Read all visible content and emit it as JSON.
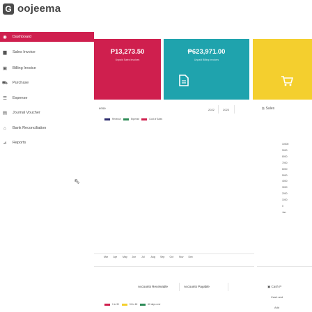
{
  "app": {
    "logo_letter": "G",
    "name": "oojeema"
  },
  "sidebar": {
    "items": [
      {
        "label": "Dashboard",
        "icon": "dashboard-icon"
      },
      {
        "label": "Sales Invoice",
        "icon": "bar-chart-icon"
      },
      {
        "label": "Billing Invoice",
        "icon": "billing-icon"
      },
      {
        "label": "Purchase",
        "icon": "cart-icon"
      },
      {
        "label": "Expense",
        "icon": "expense-icon"
      },
      {
        "label": "Journal Voucher",
        "icon": "journal-icon"
      },
      {
        "label": "Bank Reconciliation",
        "icon": "bank-icon"
      },
      {
        "label": "Reports",
        "icon": "reports-icon"
      }
    ]
  },
  "cards": [
    {
      "value": "P13,273.50",
      "sub": "Unpaid Sales Invoices",
      "color": "#cf1f4e"
    },
    {
      "value": "₱623,971.00",
      "sub": "Unpaid Billing Invoices",
      "color": "#1fa3ad"
    },
    {
      "value": "",
      "sub": "",
      "color": "#f4cf2e"
    }
  ],
  "income_expense": {
    "title_fragment": "ense",
    "years": [
      "2022",
      "2023"
    ],
    "legend": [
      "Revenue",
      "Expense",
      "Cost of Sales"
    ],
    "months": [
      "Mar",
      "Apr",
      "May",
      "Jun",
      "Jul",
      "Aug",
      "Sep",
      "Oct",
      "Nov",
      "Dec"
    ]
  },
  "sales": {
    "title": "Sales",
    "ticks": [
      "10000",
      "9000",
      "8000",
      "7000",
      "6000",
      "5000",
      "4000",
      "3000",
      "2000",
      "1000",
      "0",
      "Jan"
    ]
  },
  "ar_ap": {
    "tabs": [
      "Accounts Receivable",
      "Accounts Payable"
    ],
    "legend": [
      "1 to 30",
      "31 to 60",
      "60 days over"
    ]
  },
  "cash": {
    "title": "Cash P",
    "sub": "Cash and",
    "value": "Add"
  },
  "colors": {
    "accent": "#cf1f4e",
    "teal": "#1fa3ad",
    "yellow": "#f4cf2e",
    "green": "#2e8b57"
  }
}
